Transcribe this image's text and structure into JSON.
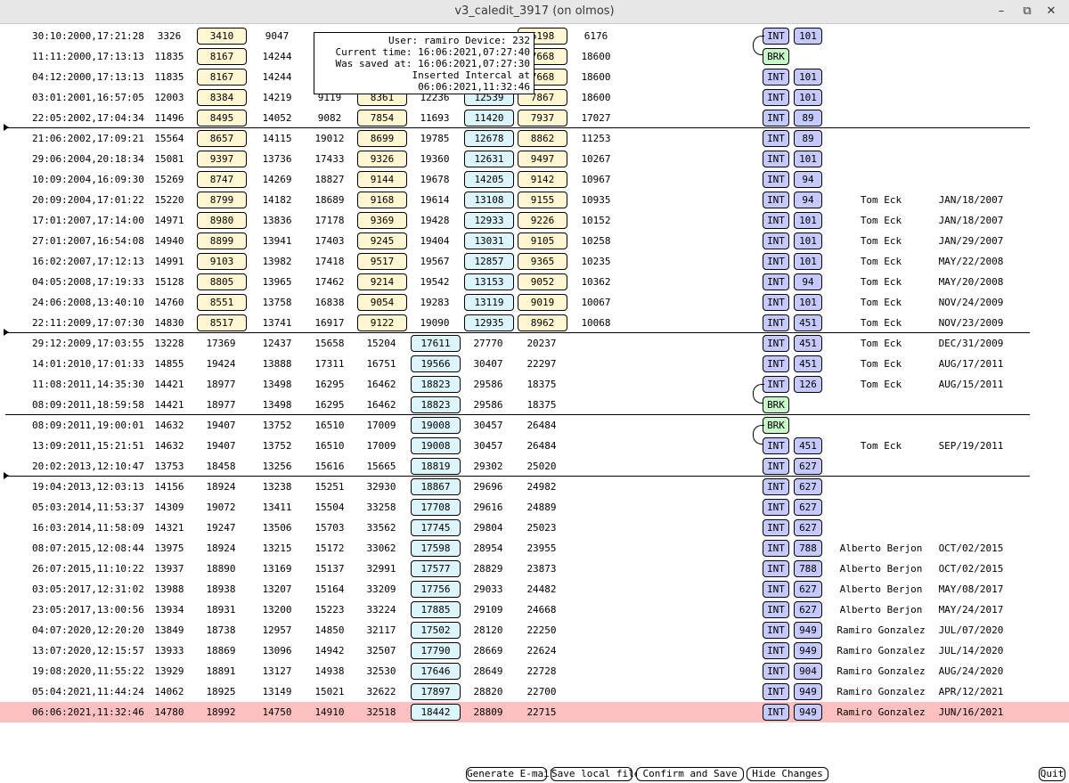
{
  "window": {
    "title": "v3_caledit_3917 (on olmos)",
    "minimize_icon": "minimize-icon",
    "maximize_icon": "restore-icon",
    "close_icon": "close-icon"
  },
  "tooltip": {
    "line1": "User: ramiro Device: 232",
    "line2": "Current time: 16:06:2021,07:27:40",
    "line3": "Was saved at: 16:06:2021,07:27:30",
    "line4": "Inserted Intercal at 06:06:2021,11:32:46"
  },
  "colors": {
    "yellow_box": "#fff7d1",
    "cyan_box": "#dcf5fb",
    "int_box": "#c6c9fb",
    "brk_box": "#c8f9c8",
    "highlight_row": "#fcc0c0"
  },
  "rows": [
    {
      "date": "30:10:2000,17:21:28",
      "v": [
        "3326",
        "3410",
        "9047",
        "",
        "",
        "7???",
        "",
        "6198",
        "6176"
      ],
      "type": "INT",
      "num": "101",
      "name": "",
      "sdate": ""
    },
    {
      "date": "11:11:2000,17:13:13",
      "v": [
        "11835",
        "8167",
        "14244",
        "",
        "",
        "",
        "",
        "7668",
        "18600"
      ],
      "type": "BRK",
      "num": "",
      "name": "",
      "sdate": ""
    },
    {
      "date": "04:12:2000,17:13:13",
      "v": [
        "11835",
        "8167",
        "14244",
        "",
        "",
        "",
        "",
        "7668",
        "18600"
      ],
      "type": "INT",
      "num": "101",
      "name": "",
      "sdate": ""
    },
    {
      "date": "03:01:2001,16:57:05",
      "v": [
        "12003",
        "8384",
        "14219",
        "9119",
        "8361",
        "12236",
        "12539",
        "7867",
        "18600"
      ],
      "type": "INT",
      "num": "101",
      "name": "",
      "sdate": ""
    },
    {
      "date": "22:05:2002,17:04:34",
      "v": [
        "11496",
        "8495",
        "14052",
        "9082",
        "7854",
        "11693",
        "11420",
        "7937",
        "17027"
      ],
      "type": "INT",
      "num": "89",
      "name": "",
      "sdate": ""
    },
    {
      "date": "21:06:2002,17:09:21",
      "v": [
        "15564",
        "8657",
        "14115",
        "19012",
        "8699",
        "19785",
        "12678",
        "8862",
        "11253"
      ],
      "type": "INT",
      "num": "89",
      "name": "",
      "sdate": ""
    },
    {
      "date": "29:06:2004,20:18:34",
      "v": [
        "15081",
        "9397",
        "13736",
        "17433",
        "9326",
        "19360",
        "12631",
        "9497",
        "10267"
      ],
      "type": "INT",
      "num": "101",
      "name": "",
      "sdate": ""
    },
    {
      "date": "10:09:2004,16:09:30",
      "v": [
        "15269",
        "8747",
        "14269",
        "18827",
        "9144",
        "19678",
        "14205",
        "9142",
        "10967"
      ],
      "type": "INT",
      "num": "94",
      "name": "",
      "sdate": ""
    },
    {
      "date": "20:09:2004,17:01:22",
      "v": [
        "15220",
        "8799",
        "14182",
        "18689",
        "9168",
        "19614",
        "13108",
        "9155",
        "10935"
      ],
      "type": "INT",
      "num": "94",
      "name": "Tom Eck",
      "sdate": "JAN/18/2007"
    },
    {
      "date": "17:01:2007,17:14:00",
      "v": [
        "14971",
        "8980",
        "13836",
        "17178",
        "9369",
        "19428",
        "12933",
        "9226",
        "10152"
      ],
      "type": "INT",
      "num": "101",
      "name": "Tom Eck",
      "sdate": "JAN/18/2007"
    },
    {
      "date": "27:01:2007,16:54:08",
      "v": [
        "14940",
        "8899",
        "13941",
        "17403",
        "9245",
        "19404",
        "13031",
        "9105",
        "10258"
      ],
      "type": "INT",
      "num": "101",
      "name": "Tom Eck",
      "sdate": "JAN/29/2007"
    },
    {
      "date": "16:02:2007,17:12:13",
      "v": [
        "14991",
        "9103",
        "13982",
        "17418",
        "9517",
        "19567",
        "12857",
        "9365",
        "10235"
      ],
      "type": "INT",
      "num": "101",
      "name": "Tom Eck",
      "sdate": "MAY/22/2008"
    },
    {
      "date": "04:05:2008,17:19:33",
      "v": [
        "15128",
        "8805",
        "13965",
        "17462",
        "9214",
        "19542",
        "13153",
        "9052",
        "10362"
      ],
      "type": "INT",
      "num": "94",
      "name": "Tom Eck",
      "sdate": "MAY/20/2008"
    },
    {
      "date": "24:06:2008,13:40:10",
      "v": [
        "14760",
        "8551",
        "13758",
        "16838",
        "9054",
        "19283",
        "13119",
        "9019",
        "10067"
      ],
      "type": "INT",
      "num": "101",
      "name": "Tom Eck",
      "sdate": "NOV/24/2009"
    },
    {
      "date": "22:11:2009,17:07:30",
      "v": [
        "14830",
        "8517",
        "13741",
        "16917",
        "9122",
        "19090",
        "12935",
        "8962",
        "10068"
      ],
      "type": "INT",
      "num": "451",
      "name": "Tom Eck",
      "sdate": "NOV/23/2009"
    },
    {
      "date": "29:12:2009,17:03:55",
      "v": [
        "13228",
        "17369",
        "12437",
        "15658",
        "15204",
        "17611",
        "27770",
        "20237",
        ""
      ],
      "type": "INT",
      "num": "451",
      "name": "Tom Eck",
      "sdate": "DEC/31/2009"
    },
    {
      "date": "14:01:2010,17:01:33",
      "v": [
        "14855",
        "19424",
        "13888",
        "17311",
        "16751",
        "19566",
        "30407",
        "22297",
        ""
      ],
      "type": "INT",
      "num": "451",
      "name": "Tom Eck",
      "sdate": "AUG/17/2011"
    },
    {
      "date": "11:08:2011,14:35:30",
      "v": [
        "14421",
        "18977",
        "13498",
        "16295",
        "16462",
        "18823",
        "29586",
        "18375",
        ""
      ],
      "type": "INT",
      "num": "126",
      "name": "Tom Eck",
      "sdate": "AUG/15/2011"
    },
    {
      "date": "08:09:2011,18:59:58",
      "v": [
        "14421",
        "18977",
        "13498",
        "16295",
        "16462",
        "18823",
        "29586",
        "18375",
        ""
      ],
      "type": "BRK",
      "num": "",
      "name": "",
      "sdate": ""
    },
    {
      "date": "08:09:2011,19:00:01",
      "v": [
        "14632",
        "19407",
        "13752",
        "16510",
        "17009",
        "19008",
        "30457",
        "26484",
        ""
      ],
      "type": "BRK",
      "num": "",
      "name": "",
      "sdate": ""
    },
    {
      "date": "13:09:2011,15:21:51",
      "v": [
        "14632",
        "19407",
        "13752",
        "16510",
        "17009",
        "19008",
        "30457",
        "26484",
        ""
      ],
      "type": "INT",
      "num": "451",
      "name": "Tom Eck",
      "sdate": "SEP/19/2011"
    },
    {
      "date": "20:02:2013,12:10:47",
      "v": [
        "13753",
        "18458",
        "13256",
        "15616",
        "15665",
        "18819",
        "29302",
        "25020",
        ""
      ],
      "type": "INT",
      "num": "627",
      "name": "",
      "sdate": ""
    },
    {
      "date": "19:04:2013,12:03:13",
      "v": [
        "14156",
        "18924",
        "13238",
        "15251",
        "32930",
        "18867",
        "29696",
        "24982",
        ""
      ],
      "type": "INT",
      "num": "627",
      "name": "",
      "sdate": ""
    },
    {
      "date": "05:03:2014,11:53:37",
      "v": [
        "14309",
        "19072",
        "13411",
        "15504",
        "33258",
        "17708",
        "29616",
        "24889",
        ""
      ],
      "type": "INT",
      "num": "627",
      "name": "",
      "sdate": ""
    },
    {
      "date": "16:03:2014,11:58:09",
      "v": [
        "14321",
        "19247",
        "13506",
        "15703",
        "33562",
        "17745",
        "29804",
        "25023",
        ""
      ],
      "type": "INT",
      "num": "627",
      "name": "",
      "sdate": ""
    },
    {
      "date": "08:07:2015,12:08:44",
      "v": [
        "13975",
        "18924",
        "13215",
        "15172",
        "33062",
        "17598",
        "28954",
        "23955",
        ""
      ],
      "type": "INT",
      "num": "788",
      "name": "Alberto Berjon",
      "sdate": "OCT/02/2015"
    },
    {
      "date": "26:07:2015,11:10:22",
      "v": [
        "13937",
        "18890",
        "13169",
        "15137",
        "32991",
        "17577",
        "28829",
        "23873",
        ""
      ],
      "type": "INT",
      "num": "788",
      "name": "Alberto Berjon",
      "sdate": "OCT/02/2015"
    },
    {
      "date": "03:05:2017,12:31:02",
      "v": [
        "13988",
        "18938",
        "13207",
        "15164",
        "33209",
        "17756",
        "29033",
        "24482",
        ""
      ],
      "type": "INT",
      "num": "627",
      "name": "Alberto Berjon",
      "sdate": "MAY/08/2017"
    },
    {
      "date": "23:05:2017,13:00:56",
      "v": [
        "13934",
        "18931",
        "13200",
        "15223",
        "33224",
        "17885",
        "29109",
        "24668",
        ""
      ],
      "type": "INT",
      "num": "627",
      "name": "Alberto Berjon",
      "sdate": "MAY/24/2017"
    },
    {
      "date": "04:07:2020,12:20:20",
      "v": [
        "13849",
        "18738",
        "12957",
        "14850",
        "32117",
        "17502",
        "28120",
        "22250",
        ""
      ],
      "type": "INT",
      "num": "949",
      "name": "Ramiro Gonzalez",
      "sdate": "JUL/07/2020"
    },
    {
      "date": "13:07:2020,12:15:57",
      "v": [
        "13933",
        "18869",
        "13096",
        "14942",
        "32507",
        "17790",
        "28669",
        "22624",
        ""
      ],
      "type": "INT",
      "num": "949",
      "name": "Ramiro Gonzalez",
      "sdate": "JUL/14/2020"
    },
    {
      "date": "19:08:2020,11:55:22",
      "v": [
        "13929",
        "18891",
        "13127",
        "14938",
        "32530",
        "17646",
        "28649",
        "22728",
        ""
      ],
      "type": "INT",
      "num": "904",
      "name": "Ramiro Gonzalez",
      "sdate": "AUG/24/2020"
    },
    {
      "date": "05:04:2021,11:44:24",
      "v": [
        "14062",
        "18925",
        "13149",
        "15021",
        "32622",
        "17897",
        "28820",
        "22700",
        ""
      ],
      "type": "INT",
      "num": "949",
      "name": "Ramiro Gonzalez",
      "sdate": "APR/12/2021"
    },
    {
      "date": "06:06:2021,11:32:46",
      "v": [
        "14780",
        "18992",
        "14750",
        "14910",
        "32518",
        "18442",
        "28809",
        "22715",
        ""
      ],
      "type": "INT",
      "num": "949",
      "name": "Ramiro Gonzalez",
      "sdate": "JUN/16/2021"
    }
  ],
  "buttons": {
    "email": "Generate E-mail",
    "save_local": "Save local file",
    "confirm": "Confirm and Save",
    "hide": "Hide Changes",
    "quit": "Quit"
  }
}
